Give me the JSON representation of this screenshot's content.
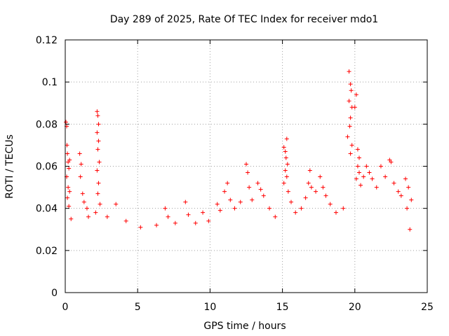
{
  "chart_data": {
    "type": "scatter",
    "title": "Day 289 of 2025, Rate Of TEC Index for receiver mdo1",
    "xlabel": "GPS time / hours",
    "ylabel": "ROTI / TECUs",
    "xlim": [
      0,
      25
    ],
    "ylim": [
      0,
      0.12
    ],
    "xticks": [
      0,
      5,
      10,
      15,
      20,
      25
    ],
    "xtick_labels": [
      "0",
      "5",
      "10",
      "15",
      "20",
      "25"
    ],
    "yticks": [
      0,
      0.02,
      0.04,
      0.06,
      0.08,
      0.1,
      0.12
    ],
    "ytick_labels": [
      "0",
      "0.02",
      "0.04",
      "0.06",
      "0.08",
      "0.1",
      "0.12"
    ],
    "grid": true,
    "marker": "+",
    "color": "#ff0000",
    "series": [
      {
        "name": "ROTI",
        "points": [
          [
            0.05,
            0.081
          ],
          [
            0.1,
            0.079
          ],
          [
            0.12,
            0.07
          ],
          [
            0.15,
            0.066
          ],
          [
            0.2,
            0.062
          ],
          [
            0.25,
            0.059
          ],
          [
            0.3,
            0.063
          ],
          [
            0.1,
            0.055
          ],
          [
            0.2,
            0.05
          ],
          [
            0.15,
            0.045
          ],
          [
            0.3,
            0.048
          ],
          [
            0.25,
            0.041
          ],
          [
            0.4,
            0.035
          ],
          [
            1.0,
            0.066
          ],
          [
            1.1,
            0.061
          ],
          [
            1.05,
            0.055
          ],
          [
            1.2,
            0.047
          ],
          [
            1.3,
            0.043
          ],
          [
            1.5,
            0.04
          ],
          [
            1.6,
            0.036
          ],
          [
            2.2,
            0.086
          ],
          [
            2.25,
            0.084
          ],
          [
            2.3,
            0.08
          ],
          [
            2.2,
            0.076
          ],
          [
            2.3,
            0.072
          ],
          [
            2.25,
            0.068
          ],
          [
            2.35,
            0.062
          ],
          [
            2.2,
            0.058
          ],
          [
            2.3,
            0.052
          ],
          [
            2.25,
            0.047
          ],
          [
            2.4,
            0.042
          ],
          [
            2.1,
            0.038
          ],
          [
            3.5,
            0.042
          ],
          [
            2.9,
            0.036
          ],
          [
            4.2,
            0.034
          ],
          [
            5.2,
            0.031
          ],
          [
            6.3,
            0.032
          ],
          [
            6.9,
            0.04
          ],
          [
            7.1,
            0.036
          ],
          [
            7.6,
            0.033
          ],
          [
            8.3,
            0.043
          ],
          [
            8.5,
            0.037
          ],
          [
            9.0,
            0.033
          ],
          [
            9.5,
            0.038
          ],
          [
            9.9,
            0.034
          ],
          [
            10.5,
            0.042
          ],
          [
            10.7,
            0.039
          ],
          [
            11.0,
            0.048
          ],
          [
            11.2,
            0.052
          ],
          [
            11.4,
            0.044
          ],
          [
            11.7,
            0.04
          ],
          [
            12.1,
            0.043
          ],
          [
            12.5,
            0.061
          ],
          [
            12.6,
            0.057
          ],
          [
            12.7,
            0.05
          ],
          [
            12.9,
            0.044
          ],
          [
            13.3,
            0.052
          ],
          [
            13.5,
            0.049
          ],
          [
            13.7,
            0.046
          ],
          [
            14.1,
            0.04
          ],
          [
            14.5,
            0.036
          ],
          [
            15.1,
            0.069
          ],
          [
            15.3,
            0.073
          ],
          [
            15.2,
            0.067
          ],
          [
            15.25,
            0.064
          ],
          [
            15.35,
            0.061
          ],
          [
            15.2,
            0.058
          ],
          [
            15.3,
            0.055
          ],
          [
            15.1,
            0.052
          ],
          [
            15.4,
            0.048
          ],
          [
            15.6,
            0.043
          ],
          [
            15.9,
            0.038
          ],
          [
            16.3,
            0.04
          ],
          [
            16.6,
            0.045
          ],
          [
            16.8,
            0.052
          ],
          [
            16.9,
            0.058
          ],
          [
            17.0,
            0.05
          ],
          [
            17.3,
            0.048
          ],
          [
            17.6,
            0.055
          ],
          [
            17.8,
            0.05
          ],
          [
            18.0,
            0.046
          ],
          [
            18.3,
            0.042
          ],
          [
            18.7,
            0.038
          ],
          [
            19.2,
            0.04
          ],
          [
            19.6,
            0.105
          ],
          [
            19.7,
            0.099
          ],
          [
            19.75,
            0.096
          ],
          [
            19.6,
            0.091
          ],
          [
            19.8,
            0.088
          ],
          [
            20.1,
            0.094
          ],
          [
            20.0,
            0.088
          ],
          [
            19.7,
            0.083
          ],
          [
            19.65,
            0.079
          ],
          [
            19.5,
            0.074
          ],
          [
            19.8,
            0.07
          ],
          [
            19.7,
            0.066
          ],
          [
            20.2,
            0.068
          ],
          [
            20.3,
            0.064
          ],
          [
            20.2,
            0.06
          ],
          [
            20.3,
            0.057
          ],
          [
            20.1,
            0.054
          ],
          [
            20.4,
            0.051
          ],
          [
            20.6,
            0.055
          ],
          [
            20.8,
            0.06
          ],
          [
            21.0,
            0.057
          ],
          [
            21.2,
            0.054
          ],
          [
            21.5,
            0.05
          ],
          [
            21.8,
            0.06
          ],
          [
            22.1,
            0.055
          ],
          [
            22.4,
            0.063
          ],
          [
            22.5,
            0.062
          ],
          [
            22.7,
            0.052
          ],
          [
            23.0,
            0.048
          ],
          [
            23.2,
            0.046
          ],
          [
            23.5,
            0.054
          ],
          [
            23.7,
            0.05
          ],
          [
            23.9,
            0.044
          ],
          [
            23.6,
            0.04
          ],
          [
            23.8,
            0.03
          ]
        ]
      }
    ]
  }
}
